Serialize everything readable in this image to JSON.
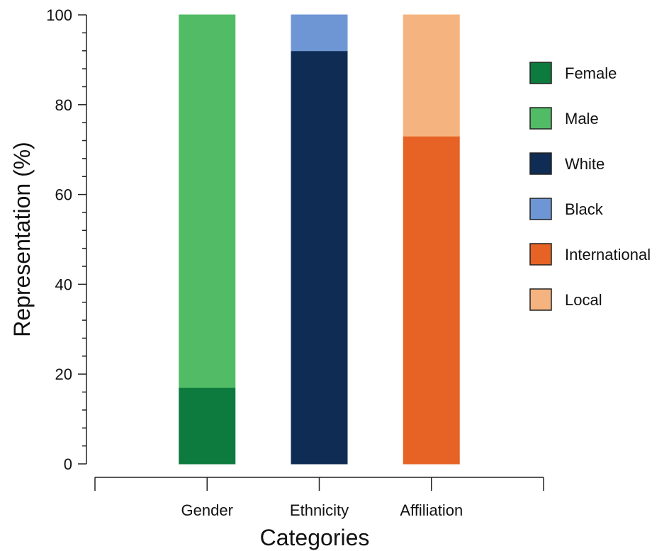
{
  "chart_data": {
    "type": "bar",
    "stacked": true,
    "xlabel": "Categories",
    "ylabel": "Representation (%)",
    "ylim": [
      0,
      100
    ],
    "yticks": [
      0,
      20,
      40,
      60,
      80,
      100
    ],
    "categories": [
      "Gender",
      "Ethnicity",
      "Affiliation"
    ],
    "series": [
      {
        "name": "Female",
        "color": "#0d7a3e",
        "values": [
          17,
          0,
          0
        ]
      },
      {
        "name": "Male",
        "color": "#52bb66",
        "values": [
          83,
          0,
          0
        ]
      },
      {
        "name": "White",
        "color": "#0f2d54",
        "values": [
          0,
          92,
          0
        ]
      },
      {
        "name": "Black",
        "color": "#6f96d4",
        "values": [
          0,
          8,
          0
        ]
      },
      {
        "name": "International",
        "color": "#e66325",
        "values": [
          0,
          0,
          73
        ]
      },
      {
        "name": "Local",
        "color": "#f5b47f",
        "values": [
          0,
          0,
          27
        ]
      }
    ],
    "legend_position": "right",
    "grid": false
  }
}
